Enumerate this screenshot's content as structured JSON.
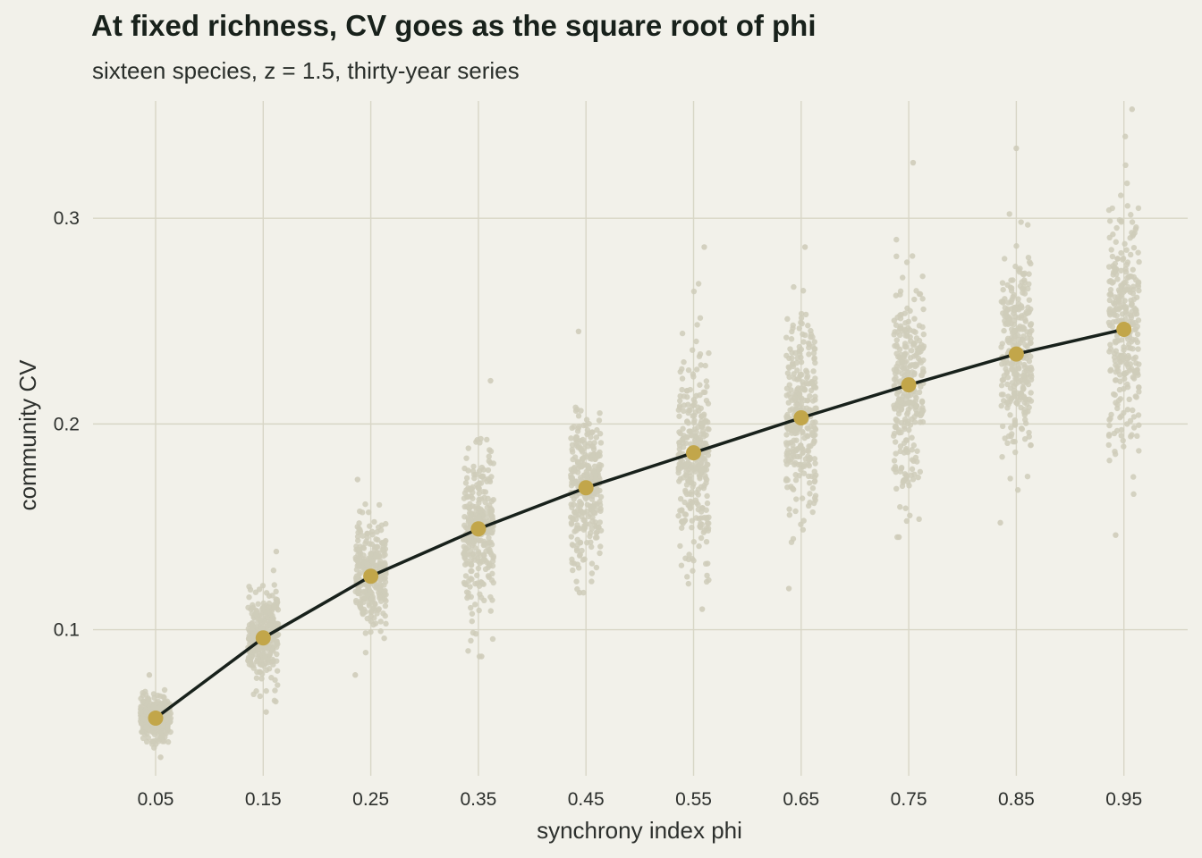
{
  "chart_data": {
    "type": "scatter",
    "title": "At fixed richness, CV goes as the square root of phi",
    "subtitle": "sixteen species, z = 1.5, thirty-year series",
    "xlabel": "synchrony index phi",
    "ylabel": "community CV",
    "x_ticks": [
      "0.05",
      "0.15",
      "0.25",
      "0.35",
      "0.45",
      "0.55",
      "0.65",
      "0.75",
      "0.85",
      "0.95"
    ],
    "y_ticks": [
      "0.1",
      "0.2",
      "0.3"
    ],
    "y_tick_values": [
      0.1,
      0.2,
      0.3
    ],
    "ylim": [
      0.029,
      0.357
    ],
    "grid": true,
    "x": [
      0.05,
      0.15,
      0.25,
      0.35,
      0.45,
      0.55,
      0.65,
      0.75,
      0.85,
      0.95
    ],
    "mean_cv": [
      0.057,
      0.096,
      0.126,
      0.149,
      0.169,
      0.186,
      0.203,
      0.219,
      0.234,
      0.246
    ],
    "replicate_spread": {
      "min": [
        0.038,
        0.06,
        0.078,
        0.087,
        0.118,
        0.11,
        0.12,
        0.145,
        0.152,
        0.146
      ],
      "max": [
        0.078,
        0.138,
        0.173,
        0.221,
        0.245,
        0.286,
        0.286,
        0.327,
        0.334,
        0.353
      ]
    },
    "colors": {
      "background": "#f2f1ea",
      "grid": "#d8d6c6",
      "replicates": "#cfccba",
      "mean_points": "#c2a64a",
      "curve": "#18211b"
    }
  }
}
